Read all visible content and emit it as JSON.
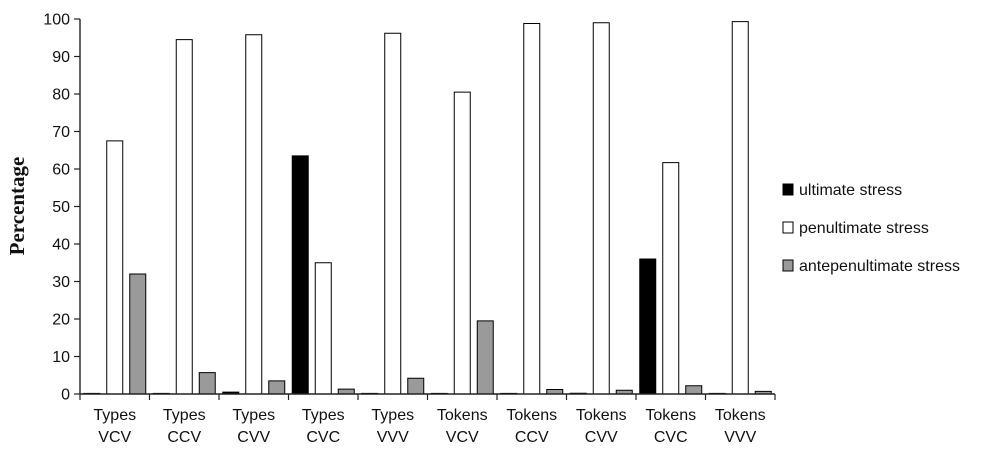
{
  "chart_data": {
    "type": "bar",
    "title": "",
    "xlabel": "",
    "ylabel": "Percentage",
    "ylim": [
      0,
      100
    ],
    "yticks": [
      0,
      10,
      20,
      30,
      40,
      50,
      60,
      70,
      80,
      90,
      100
    ],
    "grid": false,
    "legend_position": "right",
    "categories": [
      [
        "Types",
        "VCV"
      ],
      [
        "Types",
        "CCV"
      ],
      [
        "Types",
        "CVV"
      ],
      [
        "Types",
        "CVC"
      ],
      [
        "Types",
        "VVV"
      ],
      [
        "Tokens",
        "VCV"
      ],
      [
        "Tokens",
        "CCV"
      ],
      [
        "Tokens",
        "CVV"
      ],
      [
        "Tokens",
        "CVC"
      ],
      [
        "Tokens",
        "VVV"
      ]
    ],
    "series": [
      {
        "name": "ultimate stress",
        "color": "#000000",
        "values": [
          0,
          0,
          0.5,
          63.5,
          0,
          0,
          0,
          0.2,
          36,
          0
        ]
      },
      {
        "name": "penultimate stress",
        "color": "#ffffff",
        "values": [
          67.5,
          94.5,
          95.8,
          35,
          96.2,
          80.5,
          98.8,
          99,
          61.7,
          99.3
        ]
      },
      {
        "name": "antepenultimate stress",
        "color": "#9a9a9a",
        "values": [
          32,
          5.7,
          3.5,
          1.3,
          4.2,
          19.5,
          1.2,
          1,
          2.2,
          0.7
        ]
      }
    ]
  }
}
